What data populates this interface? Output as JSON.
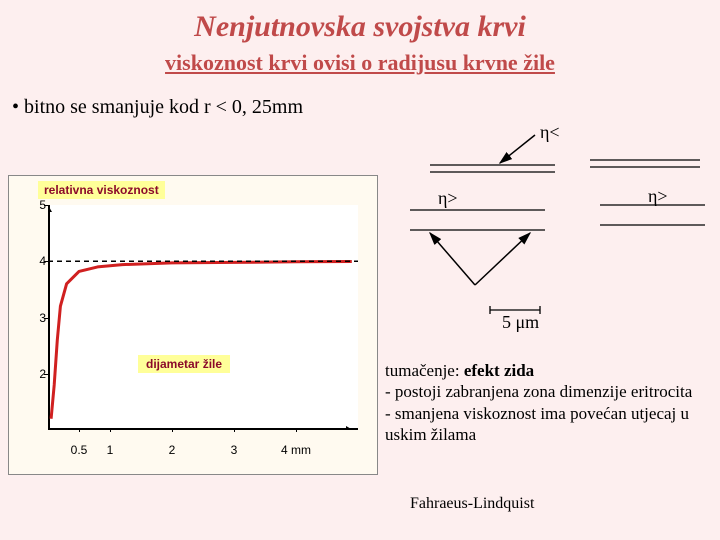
{
  "title": {
    "text": "Nenjutnovska svojstva krvi",
    "color": "#c04a4a",
    "fontsize": 30
  },
  "subtitle": {
    "text": "viskoznost krvi ovisi o radijusu krvne žile",
    "color": "#c04a4a",
    "fontsize": 22
  },
  "bullet": {
    "text": "bitno se smanjuje kod r < 0, 25mm",
    "fontsize": 20
  },
  "chart": {
    "type": "line",
    "ylabel": "relativna viskoznost",
    "xlabel": "dijametar žile",
    "label_fontsize": 12,
    "label_bg": "#ffff99",
    "label_color": "#8b0a2a",
    "xlim": [
      0,
      5
    ],
    "ylim": [
      1,
      5
    ],
    "yticks": [
      2,
      3,
      4,
      5
    ],
    "xticks": [
      0.5,
      1,
      2,
      3,
      4
    ],
    "xtick_labels": [
      "0.5",
      "1",
      "2",
      "3",
      "4 mm"
    ],
    "tick_fontsize": 12,
    "asymptote_y": 4,
    "curve_color": "#d02020",
    "curve_width": 3,
    "curve_points": [
      [
        0.05,
        1.2
      ],
      [
        0.1,
        1.8
      ],
      [
        0.15,
        2.6
      ],
      [
        0.2,
        3.2
      ],
      [
        0.3,
        3.6
      ],
      [
        0.5,
        3.82
      ],
      [
        0.8,
        3.9
      ],
      [
        1.2,
        3.94
      ],
      [
        2,
        3.97
      ],
      [
        3,
        3.98
      ],
      [
        4,
        3.99
      ],
      [
        4.9,
        3.995
      ]
    ],
    "bg_color": "#fffaf0",
    "plot_bg": "#ffffff"
  },
  "diagram": {
    "eta_less": "η<",
    "eta_greater_left": "η>",
    "eta_greater_right": "η>",
    "scale_label": "5 μm",
    "label_fontsize": 18,
    "line_color": "#000000"
  },
  "explanation": {
    "line1_label": "tumačenje: ",
    "line1_bold": "efekt zida",
    "line2": "-  postoji zabranjena zona dimenzije eritrocita",
    "line3": "- smanjena viskoznost ima povećan utjecaj u uskim žilama",
    "fontsize": 17
  },
  "footer": {
    "text": "Fahraeus-Lindquist",
    "fontsize": 16
  }
}
